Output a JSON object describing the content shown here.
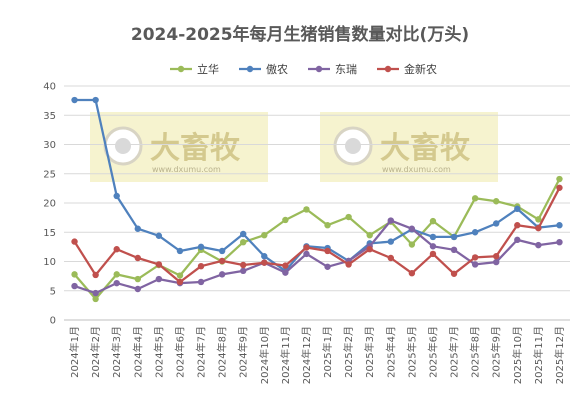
{
  "chart_data": {
    "type": "line",
    "title": "2024-2025年每月生猪销售数量对比(万头)",
    "xlabel": "",
    "ylabel": "",
    "ylim": [
      0,
      40
    ],
    "yticks": [
      0,
      5,
      10,
      15,
      20,
      25,
      30,
      35,
      40
    ],
    "grid": "horizontal",
    "legend_position": "top",
    "categories": [
      "2024年1月",
      "2024年2月",
      "2024年3月",
      "2024年4月",
      "2024年5月",
      "2024年6月",
      "2024年7月",
      "2024年8月",
      "2024年9月",
      "2024年10月",
      "2024年11月",
      "2024年12月",
      "2025年1月",
      "2025年2月",
      "2025年3月",
      "2025年4月",
      "2025年5月",
      "2025年6月",
      "2025年7月",
      "2025年8月",
      "2025年9月",
      "2025年10月",
      "2025年11月",
      "2025年12月"
    ],
    "series": [
      {
        "name": "立华",
        "color": "#9bbb59",
        "values": [
          7.8,
          3.6,
          7.8,
          7.0,
          9.4,
          7.6,
          12.0,
          10.0,
          13.3,
          14.5,
          17.1,
          18.9,
          16.2,
          17.6,
          14.5,
          16.8,
          12.9,
          16.9,
          14.2,
          20.8,
          20.3,
          19.4,
          17.2,
          24.1
        ]
      },
      {
        "name": "傲农",
        "color": "#4f81bd",
        "values": [
          37.6,
          37.6,
          21.2,
          15.6,
          14.4,
          11.8,
          12.5,
          11.8,
          14.7,
          10.9,
          8.4,
          12.6,
          12.3,
          10.1,
          13.1,
          13.4,
          15.5,
          14.2,
          14.2,
          15.0,
          16.5,
          19.0,
          15.8,
          16.2
        ]
      },
      {
        "name": "东瑞",
        "color": "#8064a2",
        "values": [
          5.8,
          4.6,
          6.3,
          5.3,
          7.0,
          6.3,
          6.5,
          7.8,
          8.4,
          9.8,
          8.1,
          11.3,
          9.1,
          10.1,
          12.6,
          17.0,
          15.6,
          12.6,
          12.0,
          9.5,
          9.9,
          13.7,
          12.8,
          13.3
        ]
      },
      {
        "name": "金新农",
        "color": "#c0504d",
        "values": [
          13.4,
          7.7,
          12.1,
          10.6,
          9.5,
          6.5,
          9.2,
          10.1,
          9.4,
          9.8,
          9.3,
          12.4,
          11.8,
          9.5,
          12.1,
          10.6,
          8.0,
          11.3,
          7.9,
          10.7,
          10.9,
          16.2,
          15.7,
          22.6
        ]
      }
    ]
  },
  "watermark": {
    "brand": "大畜牧",
    "url": "www.dxumu.com"
  }
}
